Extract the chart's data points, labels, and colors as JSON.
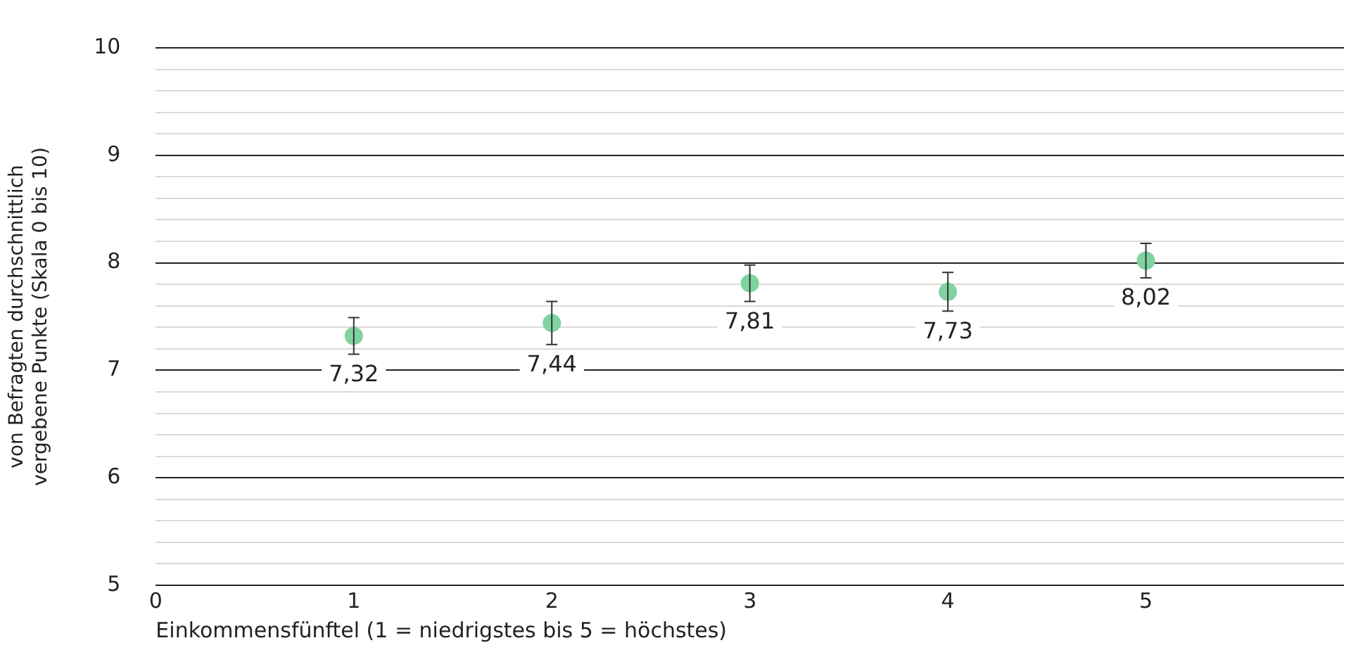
{
  "chart_data": {
    "type": "scatter",
    "xlabel": "Einkommensfünftel (1 = niedrigstes bis 5 = höchstes)",
    "ylabel": "von Befragten durchschnittlich vergebene Punkte (Skala 0 bis 10)",
    "x": [
      1,
      2,
      3,
      4,
      5
    ],
    "values": [
      7.32,
      7.44,
      7.81,
      7.73,
      8.02
    ],
    "errors": [
      0.17,
      0.2,
      0.17,
      0.18,
      0.16
    ],
    "value_labels": [
      "7,32",
      "7,44",
      "7,81",
      "7,73",
      "8,02"
    ],
    "color": "#7fd3a0",
    "marker": "circle",
    "grid": "y",
    "legend": false,
    "xlim": [
      0,
      6
    ],
    "xticks": [
      0,
      1,
      2,
      3,
      4,
      5
    ],
    "ylim": [
      5,
      10
    ],
    "yticks": [
      5,
      {
        "value": 5.2,
        "label": null
      },
      {
        "value": 5.4,
        "label": null
      },
      {
        "value": 5.6,
        "label": null
      },
      {
        "value": 5.8,
        "label": null
      },
      6,
      {
        "value": 6.2,
        "label": null
      },
      {
        "value": 6.4,
        "label": null
      },
      {
        "value": 6.6,
        "label": null
      },
      {
        "value": 6.8,
        "label": null
      },
      7,
      {
        "value": 7.2,
        "label": null
      },
      {
        "value": 7.4,
        "label": null
      },
      {
        "value": 7.6,
        "label": null
      },
      {
        "value": 7.8,
        "label": null
      },
      8,
      {
        "value": 8.2,
        "label": null
      },
      {
        "value": 8.4,
        "label": null
      },
      {
        "value": 8.6,
        "label": null
      },
      {
        "value": 8.8,
        "label": null
      },
      9,
      {
        "value": 9.2,
        "label": null
      },
      {
        "value": 9.4,
        "label": null
      },
      {
        "value": 9.6,
        "label": null
      },
      {
        "value": 9.8,
        "label": null
      },
      10
    ]
  }
}
